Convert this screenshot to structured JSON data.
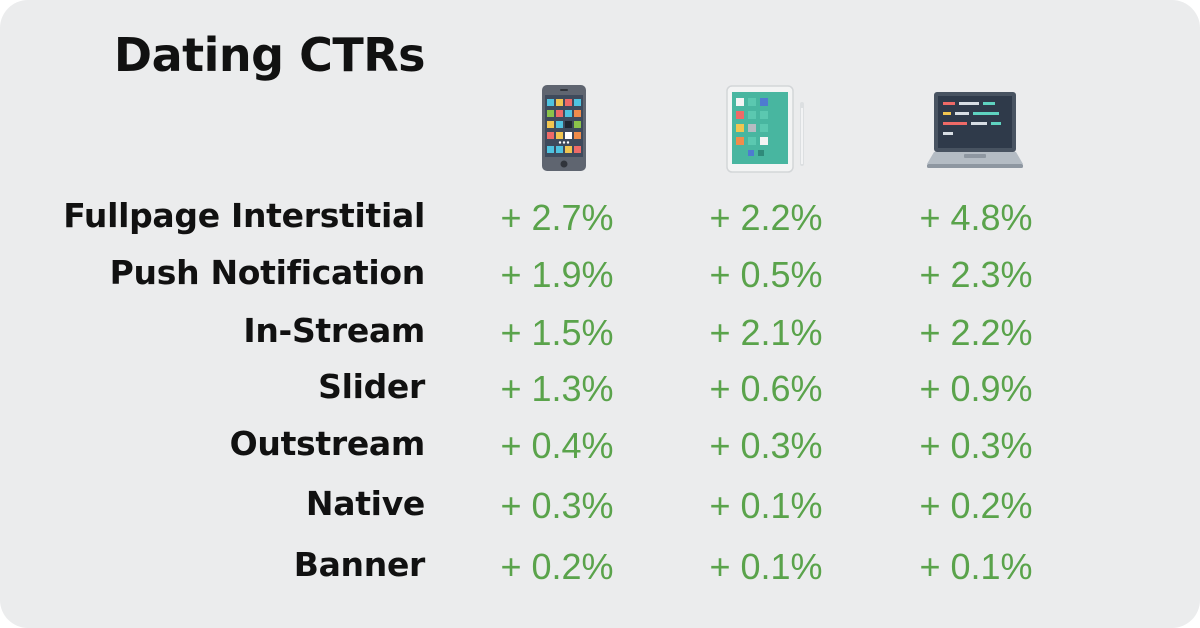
{
  "chart_data": {
    "type": "table",
    "title": "Dating CTRs",
    "columns": [
      {
        "icon": "smartphone-icon"
      },
      {
        "icon": "tablet-icon"
      },
      {
        "icon": "laptop-icon"
      }
    ],
    "rows": [
      {
        "label": "Fullpage Interstitial",
        "values": [
          "+ 2.7%",
          "+ 2.2%",
          "+ 4.8%"
        ]
      },
      {
        "label": "Push Notification",
        "values": [
          "+ 1.9%",
          "+ 0.5%",
          "+ 2.3%"
        ]
      },
      {
        "label": "In-Stream",
        "values": [
          "+ 1.5%",
          "+ 2.1%",
          "+ 2.2%"
        ]
      },
      {
        "label": "Slider",
        "values": [
          "+ 1.3%",
          "+ 0.6%",
          "+ 0.9%"
        ]
      },
      {
        "label": "Outstream",
        "values": [
          "+ 0.4%",
          "+ 0.3%",
          "+ 0.3%"
        ]
      },
      {
        "label": "Native",
        "values": [
          "+ 0.3%",
          "+ 0.1%",
          "+ 0.2%"
        ]
      },
      {
        "label": "Banner",
        "values": [
          "+ 0.2%",
          "+ 0.1%",
          "+ 0.1%"
        ]
      }
    ],
    "colors": {
      "background": "#ebeced",
      "label_text": "#111111",
      "value_text": "#5aa34b"
    }
  }
}
